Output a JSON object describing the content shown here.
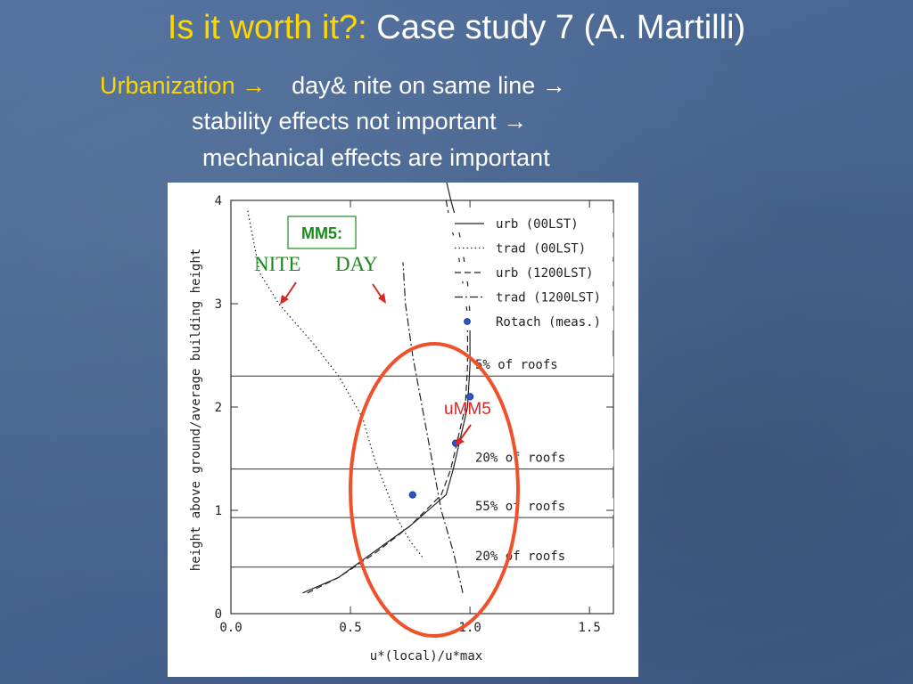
{
  "slide": {
    "title_prefix": "Is it worth it?:",
    "title_main": "Case study 7 (A. Martilli)",
    "line1_keyword": "Urbanization",
    "line1_text": "day& nite on same line",
    "line2": "stability effects not important",
    "line3": "mechanical effects are important",
    "arrow": "→"
  },
  "colors": {
    "title_yellow": "#ffd700",
    "text_white": "#ffffff",
    "annotation_red": "#d62828",
    "annotation_green": "#1a8a1a",
    "ellipse": "#f0502a",
    "dot": "#2b55c8"
  },
  "chart_data": {
    "type": "line",
    "xlabel": "u*(local)/u*max",
    "ylabel": "height above ground/average building height",
    "xlim": [
      0.0,
      1.6
    ],
    "ylim": [
      0,
      4
    ],
    "xticks": [
      "0.0",
      "0.5",
      "1.0",
      "1.5"
    ],
    "yticks": [
      "0",
      "1",
      "2",
      "3",
      "4"
    ],
    "legend_placement": "top-right",
    "series": [
      {
        "name": "urb (00LST)",
        "style": "solid",
        "x": [
          0.3,
          0.45,
          0.6,
          0.75,
          0.9,
          0.93,
          0.96,
          0.99,
          1.0,
          1.0,
          0.99,
          0.97,
          0.95,
          0.92,
          0.9
        ],
        "y": [
          0.2,
          0.35,
          0.6,
          0.85,
          1.15,
          1.4,
          1.7,
          2.0,
          2.4,
          2.9,
          3.2,
          3.5,
          3.75,
          4.0,
          4.2
        ]
      },
      {
        "name": "trad (00LST)",
        "style": "dotted",
        "x": [
          0.07,
          0.12,
          0.2,
          0.35,
          0.45,
          0.55,
          0.6,
          0.65,
          0.7,
          0.75,
          0.8
        ],
        "y": [
          3.9,
          3.3,
          3.0,
          2.6,
          2.3,
          1.9,
          1.5,
          1.2,
          0.9,
          0.7,
          0.55
        ]
      },
      {
        "name": "urb (1200LST)",
        "style": "dashed",
        "x": [
          0.32,
          0.45,
          0.6,
          0.75,
          0.88,
          0.92,
          0.95,
          0.98,
          0.99,
          0.99,
          0.97,
          0.95,
          0.92,
          0.9
        ],
        "y": [
          0.2,
          0.35,
          0.58,
          0.85,
          1.15,
          1.4,
          1.7,
          2.0,
          2.4,
          2.9,
          3.2,
          3.5,
          3.75,
          4.0
        ]
      },
      {
        "name": "trad (1200LST)",
        "style": "dash-dot",
        "x": [
          0.97,
          0.93,
          0.88,
          0.84,
          0.8,
          0.76,
          0.73,
          0.72
        ],
        "y": [
          0.2,
          0.6,
          1.0,
          1.5,
          2.0,
          2.5,
          3.0,
          3.4
        ]
      },
      {
        "name": "Rotach (meas.)",
        "style": "marker",
        "x": [
          0.76,
          0.94,
          1.0,
          1.0
        ],
        "y": [
          1.15,
          1.65,
          2.1,
          2.8
        ]
      }
    ],
    "reference_lines": [
      {
        "y": 2.3,
        "label": "5% of roofs"
      },
      {
        "y": 1.4,
        "label": "20% of roofs"
      },
      {
        "y": 0.93,
        "label": "55% of roofs"
      },
      {
        "y": 0.45,
        "label": "20% of roofs"
      }
    ],
    "annotations": {
      "mm5_box": "MM5:",
      "nite_label": "NITE",
      "day_label": "DAY",
      "umm5_label": "uMM5"
    }
  }
}
